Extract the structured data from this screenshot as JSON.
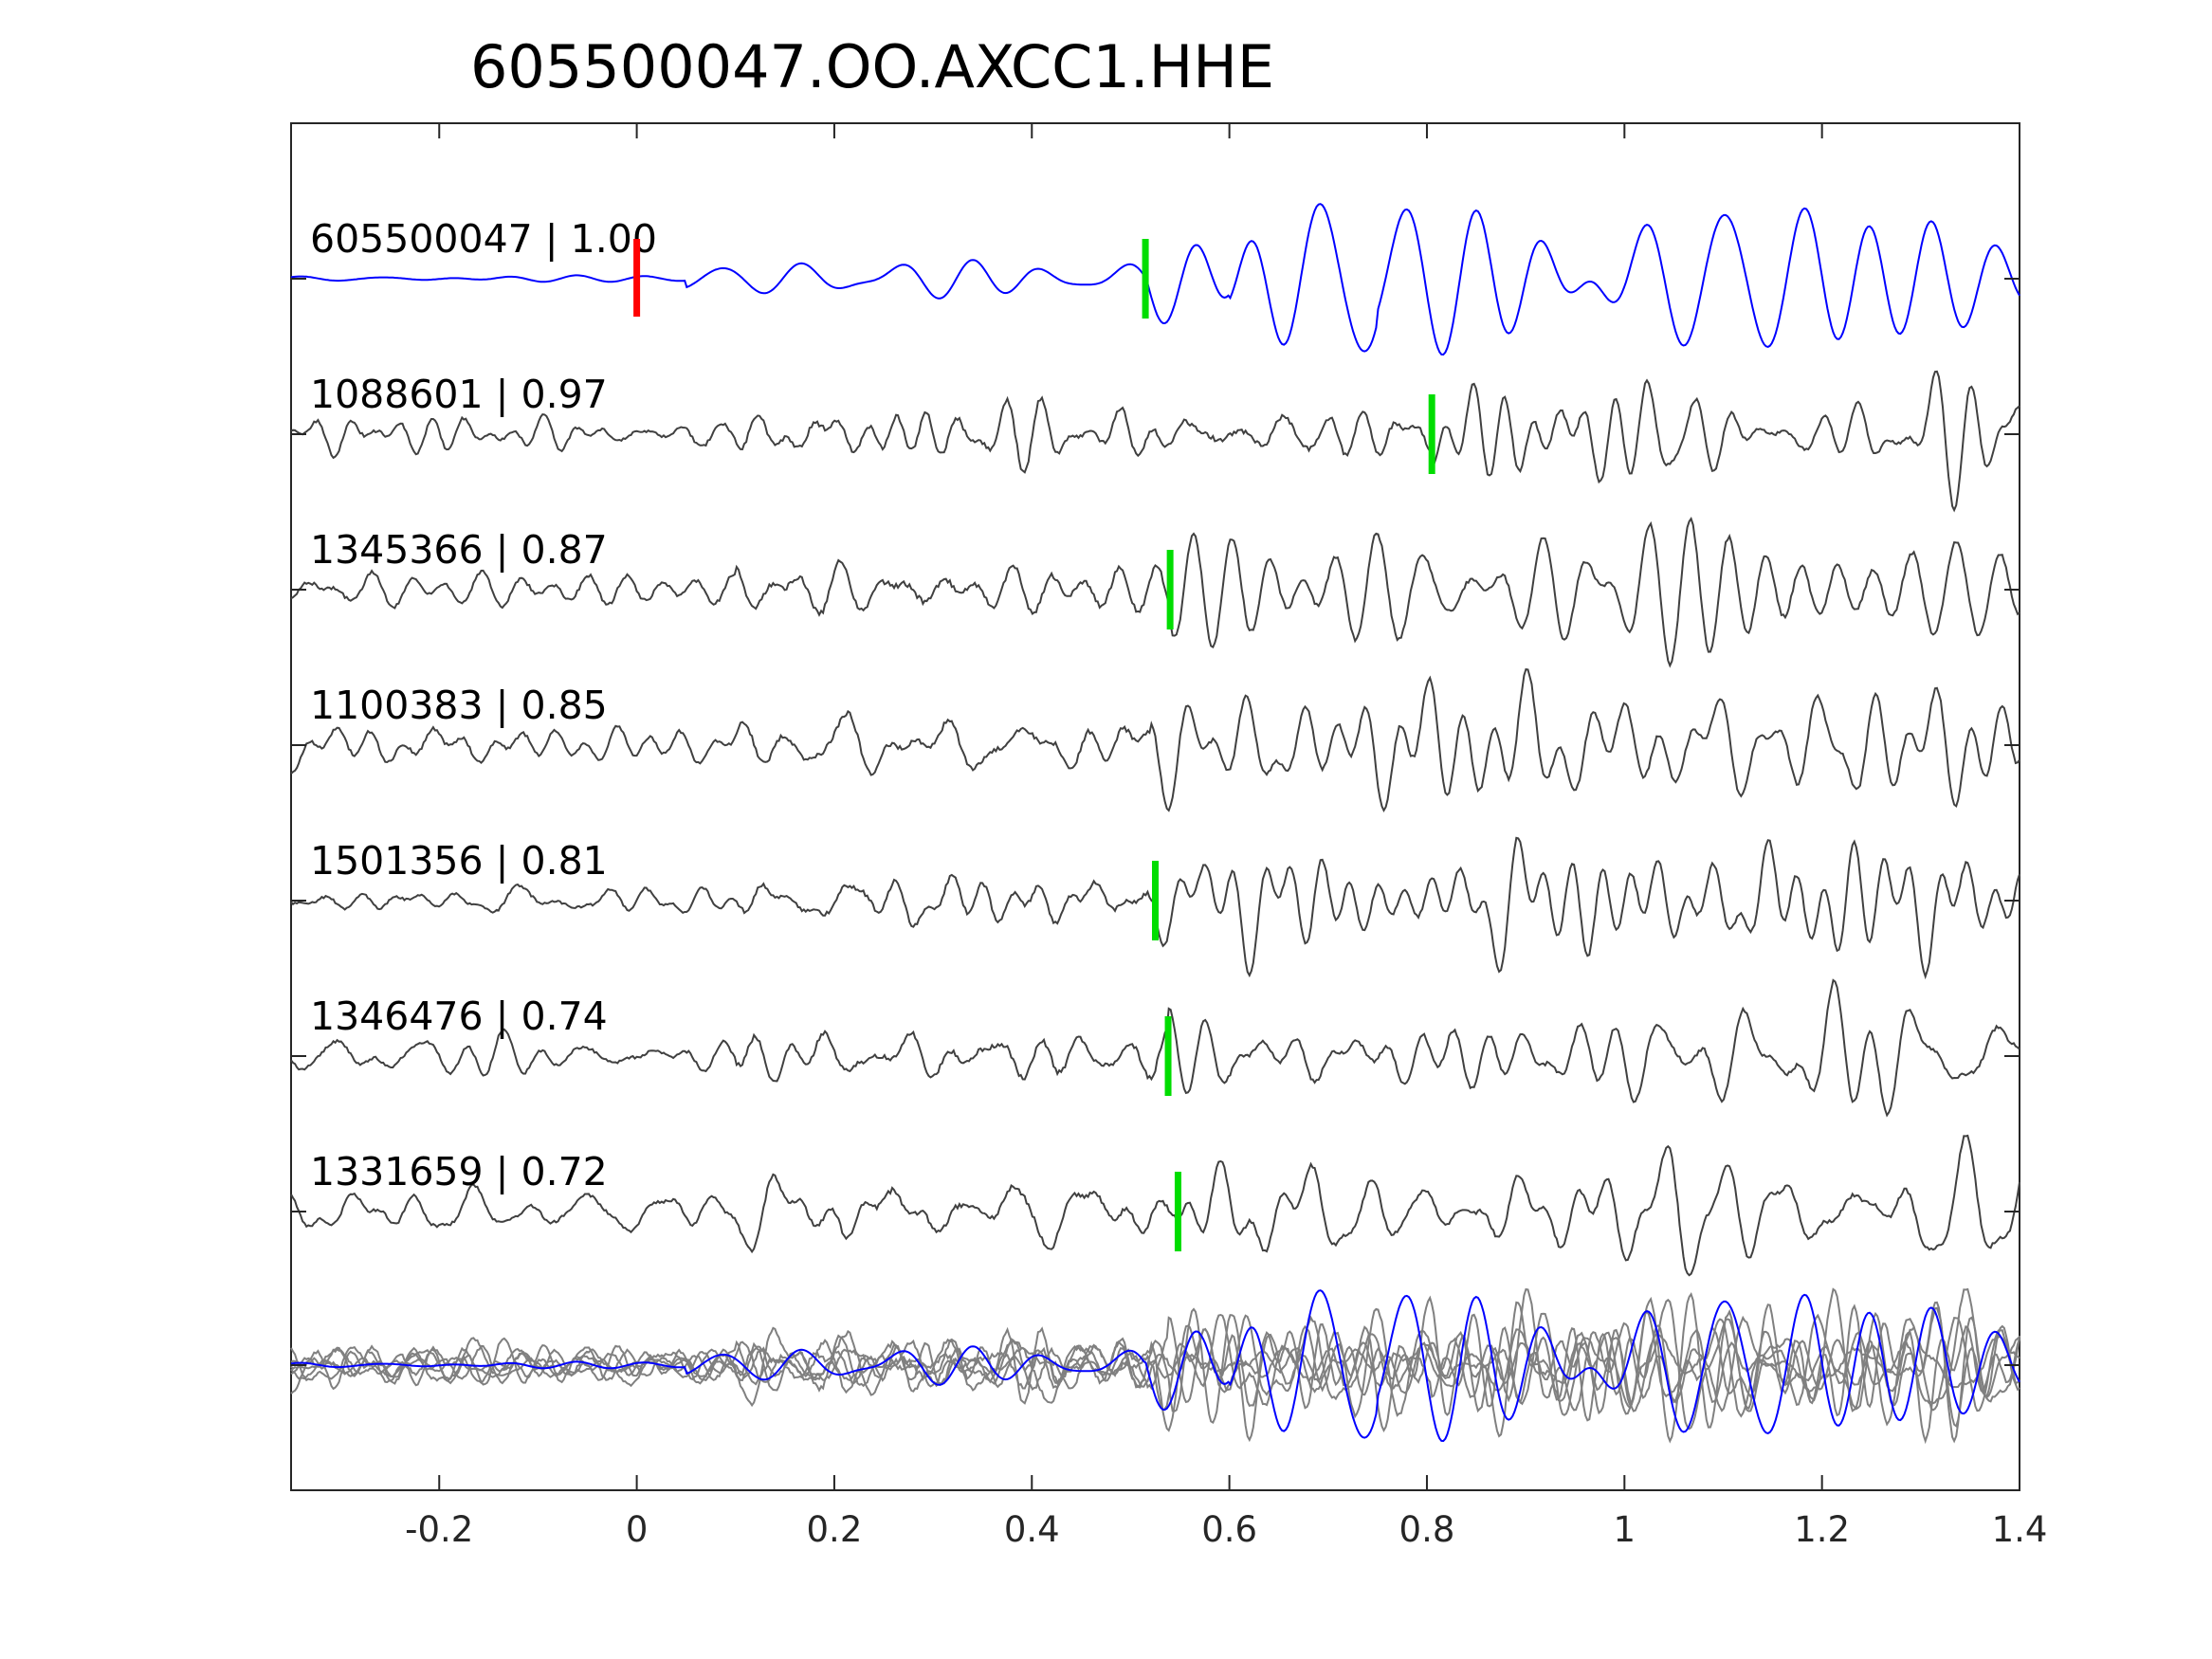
{
  "chart_data": {
    "type": "line",
    "title": "605500047.OO.AXCC1.HHE",
    "xlabel": "",
    "ylabel": "",
    "xlim": [
      -0.35,
      1.4
    ],
    "xticks": [
      -0.2,
      0,
      0.2,
      0.4,
      0.6,
      0.8,
      1,
      1.2,
      1.4
    ],
    "xtick_labels": [
      "-0.2",
      "0",
      "0.2",
      "0.4",
      "0.6",
      "0.8",
      "1",
      "1.2",
      "1.4"
    ],
    "grid": false,
    "colors": {
      "template": "#0000ff",
      "trace": "#404040",
      "overlay": "#808080",
      "origin_marker": "#ff0000",
      "pick_marker": "#00dd00",
      "axes": "#262626"
    },
    "origin_marker_time": 0.0,
    "series": [
      {
        "name": "605500047 | 1.00",
        "id": "605500047",
        "cc": 1.0,
        "pick": 0.515,
        "template": true
      },
      {
        "name": "1088601 | 0.97",
        "id": "1088601",
        "cc": 0.97,
        "pick": 0.805
      },
      {
        "name": "1345366 | 0.87",
        "id": "1345366",
        "cc": 0.87,
        "pick": 0.54
      },
      {
        "name": "1100383 | 0.85",
        "id": "1100383",
        "cc": 0.85,
        "pick": null
      },
      {
        "name": "1501356 | 0.81",
        "id": "1501356",
        "cc": 0.81,
        "pick": 0.525
      },
      {
        "name": "1346476 | 0.74",
        "id": "1346476",
        "cc": 0.74,
        "pick": 0.538
      },
      {
        "name": "1331659 | 0.72",
        "id": "1331659",
        "cc": 0.72,
        "pick": 0.548
      }
    ],
    "overlay_row": {
      "traces": "all",
      "highlight": "605500047"
    }
  }
}
